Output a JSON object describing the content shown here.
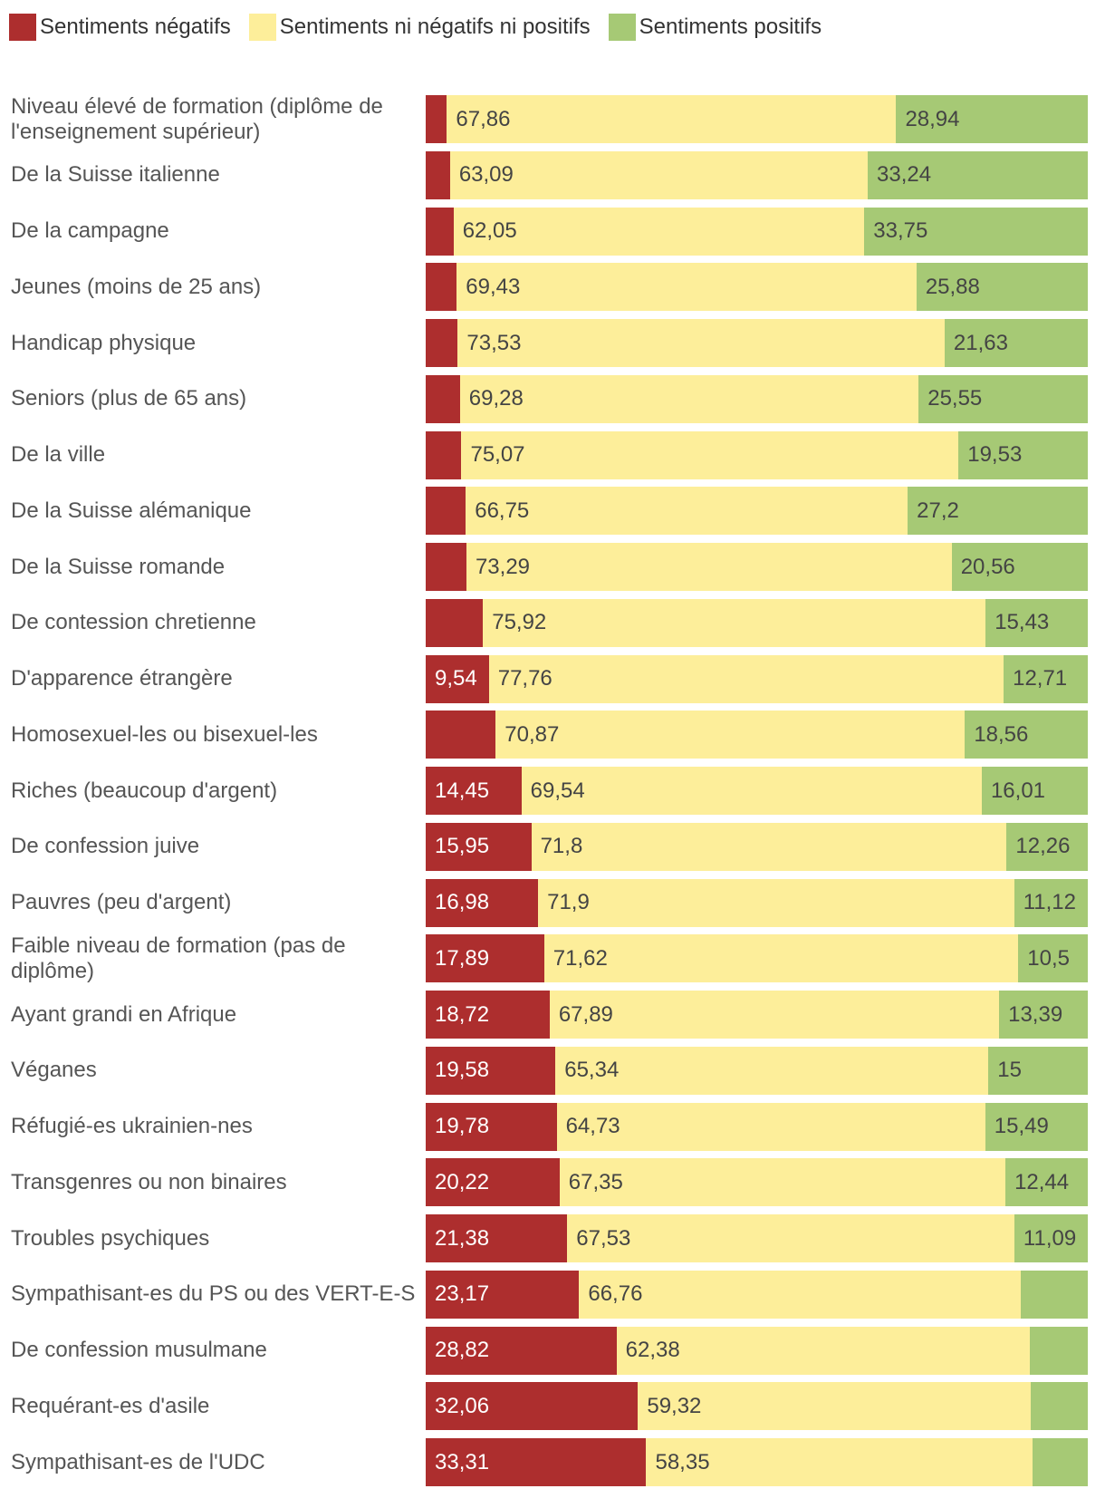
{
  "chart_data": {
    "type": "bar",
    "orientation": "horizontal",
    "stacked": true,
    "unit": "%",
    "legend_position": "top-left",
    "series": [
      {
        "name": "Sentiments négatifs",
        "color": "#ad2e2e"
      },
      {
        "name": "Sentiments ni négatifs ni positifs",
        "color": "#fdee9a"
      },
      {
        "name": "Sentiments positifs",
        "color": "#a6c975"
      }
    ],
    "rows": [
      {
        "label": "Niveau élevé de formation (diplôme de l'enseignement supérieur)",
        "neg": 3.2,
        "neu": "67,86",
        "pos": "28,94",
        "neg_label": ""
      },
      {
        "label": "De la Suisse italienne",
        "neg": 3.67,
        "neu": "63,09",
        "pos": "33,24",
        "neg_label": ""
      },
      {
        "label": "De la campagne",
        "neg": 4.2,
        "neu": "62,05",
        "pos": "33,75",
        "neg_label": ""
      },
      {
        "label": "Jeunes (moins de 25 ans)",
        "neg": 4.69,
        "neu": "69,43",
        "pos": "25,88",
        "neg_label": ""
      },
      {
        "label": "Handicap physique",
        "neg": 4.84,
        "neu": "73,53",
        "pos": "21,63",
        "neg_label": ""
      },
      {
        "label": "Seniors (plus de 65 ans)",
        "neg": 5.17,
        "neu": "69,28",
        "pos": "25,55",
        "neg_label": ""
      },
      {
        "label": "De la ville",
        "neg": 5.4,
        "neu": "75,07",
        "pos": "19,53",
        "neg_label": ""
      },
      {
        "label": "De la Suisse alémanique",
        "neg": 6.05,
        "neu": "66,75",
        "pos": "27,2",
        "neg_label": ""
      },
      {
        "label": "De la Suisse romande",
        "neg": 6.15,
        "neu": "73,29",
        "pos": "20,56",
        "neg_label": ""
      },
      {
        "label": "De contession chretienne",
        "neg": 8.65,
        "neu": "75,92",
        "pos": "15,43",
        "neg_label": ""
      },
      {
        "label": "D'apparence étrangère",
        "neg": 9.54,
        "neu": "77,76",
        "pos": "12,71",
        "neg_label": "9,54"
      },
      {
        "label": "Homosexuel-les ou bisexuel-les",
        "neg": 10.57,
        "neu": "70,87",
        "pos": "18,56",
        "neg_label": ""
      },
      {
        "label": "Riches (beaucoup d'argent)",
        "neg": 14.45,
        "neu": "69,54",
        "pos": "16,01",
        "neg_label": "14,45"
      },
      {
        "label": "De confession juive",
        "neg": 15.95,
        "neu": "71,8",
        "pos": "12,26",
        "neg_label": "15,95"
      },
      {
        "label": "Pauvres (peu d'argent)",
        "neg": 16.98,
        "neu": "71,9",
        "pos": "11,12",
        "neg_label": "16,98"
      },
      {
        "label": "Faible niveau de formation (pas de diplôme)",
        "neg": 17.89,
        "neu": "71,62",
        "pos": "10,5",
        "neg_label": "17,89"
      },
      {
        "label": "Ayant grandi en Afrique",
        "neg": 18.72,
        "neu": "67,89",
        "pos": "13,39",
        "neg_label": "18,72"
      },
      {
        "label": "Véganes",
        "neg": 19.58,
        "neu": "65,34",
        "pos": "15",
        "neg_label": "19,58"
      },
      {
        "label": "Réfugié-es ukrainien-nes",
        "neg": 19.78,
        "neu": "64,73",
        "pos": "15,49",
        "neg_label": "19,78"
      },
      {
        "label": "Transgenres ou non binaires",
        "neg": 20.22,
        "neu": "67,35",
        "pos": "12,44",
        "neg_label": "20,22"
      },
      {
        "label": "Troubles psychiques",
        "neg": 21.38,
        "neu": "67,53",
        "pos": "11,09",
        "neg_label": "21,38"
      },
      {
        "label": "Sympathisant-es du PS ou des VERT-E-S",
        "neg": 23.17,
        "neu": "66,76",
        "pos": "10,07",
        "neg_label": "23,17",
        "pos_hidden": true
      },
      {
        "label": "De confession musulmane",
        "neg": 28.82,
        "neu": "62,38",
        "pos": "8,8",
        "neg_label": "28,82",
        "pos_hidden": true
      },
      {
        "label": "Requérant-es d'asile",
        "neg": 32.06,
        "neu": "59,32",
        "pos": "8,62",
        "neg_label": "32,06",
        "pos_hidden": true
      },
      {
        "label": "Sympathisant-es de l'UDC",
        "neg": 33.31,
        "neu": "58,35",
        "pos": "8,34",
        "neg_label": "33,31",
        "pos_hidden": true
      }
    ]
  }
}
